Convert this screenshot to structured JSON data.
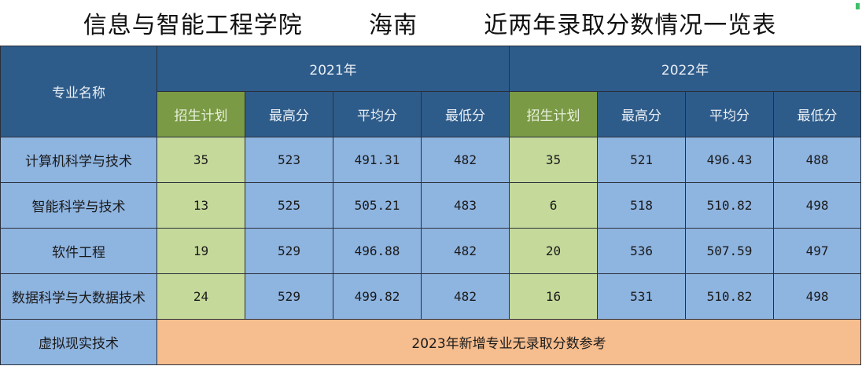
{
  "title": {
    "college": "信息与智能工程学院",
    "province": "海南",
    "subject": "近两年录取分数情况一览表"
  },
  "header": {
    "major_col": "专业名称",
    "years": [
      "2021年",
      "2022年"
    ],
    "subcols": [
      "招生计划",
      "最高分",
      "平均分",
      "最低分"
    ]
  },
  "rows": [
    {
      "major": "计算机科学与技术",
      "y2021": [
        "35",
        "523",
        "491.31",
        "482"
      ],
      "y2022": [
        "35",
        "521",
        "496.43",
        "488"
      ]
    },
    {
      "major": "智能科学与技术",
      "y2021": [
        "13",
        "525",
        "505.21",
        "483"
      ],
      "y2022": [
        "6",
        "518",
        "510.82",
        "498"
      ]
    },
    {
      "major": "软件工程",
      "y2021": [
        "19",
        "529",
        "496.88",
        "482"
      ],
      "y2022": [
        "20",
        "536",
        "507.59",
        "497"
      ]
    },
    {
      "major": "数据科学与大数据技术",
      "y2021": [
        "24",
        "529",
        "499.82",
        "482"
      ],
      "y2022": [
        "16",
        "531",
        "510.82",
        "498"
      ]
    }
  ],
  "new_major": {
    "major": "虚拟现实技术",
    "note": "2023年新增专业无录取分数参考"
  },
  "colors": {
    "header_blue": "#2e5c8a",
    "plan_header_green": "#7a9a45",
    "cell_blue": "#8eb4e0",
    "plan_cell_green": "#c5d99a",
    "note_orange": "#f6bd8e"
  }
}
